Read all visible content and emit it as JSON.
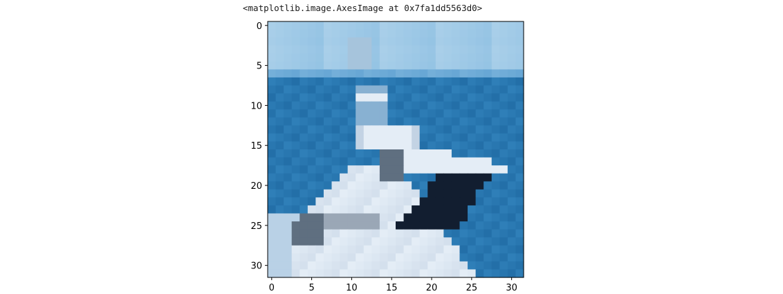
{
  "output_text": "<matplotlib.image.AxesImage at 0x7fa1dd5563d0>",
  "chart_data": {
    "type": "heatmap",
    "title": "",
    "xlabel": "",
    "ylabel": "",
    "image_size": [
      32,
      32
    ],
    "xlim": [
      -0.5,
      31.5
    ],
    "ylim": [
      31.5,
      -0.5
    ],
    "x_ticks": [
      0,
      5,
      10,
      15,
      20,
      25,
      30
    ],
    "y_ticks": [
      0,
      5,
      10,
      15,
      20,
      25,
      30
    ],
    "x_tick_labels": [
      "0",
      "5",
      "10",
      "15",
      "20",
      "25",
      "30"
    ],
    "y_tick_labels": [
      "0",
      "5",
      "10",
      "15",
      "20",
      "25",
      "30"
    ],
    "grid": false,
    "colors": {
      "sky": "#8dbfe2",
      "sky_light": "#a9cfe9",
      "horizon": "#5b9fd0",
      "sea": "#2f7fb8",
      "sea_dark": "#1f6aa3",
      "hull_white": "#e4edf6",
      "hull_shade": "#c3d3e4",
      "window_dark": "#121e30",
      "cabin_gray": "#5f6f80",
      "deck_gray": "#9aa7b6"
    }
  }
}
